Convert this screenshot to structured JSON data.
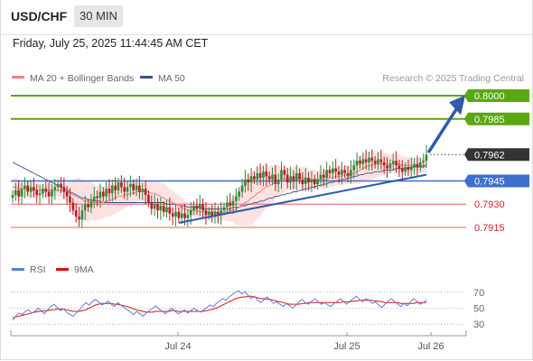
{
  "header": {
    "symbol": "USD/CHF",
    "timeframe": "30 MIN",
    "datetime": "Friday, July 25, 2025 11:44:45 AM CET"
  },
  "legend": {
    "ma20": "MA 20 + Bollinger Bands",
    "ma50": "MA 50",
    "copyright": "Research © 2025 Trading Central"
  },
  "colors": {
    "resistance": "#5aa712",
    "pivot": "#3d6fcf",
    "support": "#ef7c84",
    "bull": "#2e8b3a",
    "bear": "#b02020",
    "ma20": "#f08080",
    "ma50": "#3a4f8a",
    "bands": "#fde0e0",
    "rsi": "#5b7fd6",
    "rsi_ma": "#e01010",
    "last": "#333333",
    "arrow": "#2f5aa8"
  },
  "chart_data": [
    {
      "type": "candlestick",
      "name": "price",
      "x_labels": [
        "Jul 24",
        "Jul 25",
        "Jul 26"
      ],
      "levels": [
        {
          "name": "resistance-2",
          "value": 0.8,
          "label": "0.8000",
          "kind": "resistance"
        },
        {
          "name": "resistance-1",
          "value": 0.7985,
          "label": "0.7985",
          "kind": "resistance"
        },
        {
          "name": "last-price",
          "value": 0.7962,
          "label": "0.7962",
          "kind": "last"
        },
        {
          "name": "pivot",
          "value": 0.7945,
          "label": "0.7945",
          "kind": "pivot"
        },
        {
          "name": "support-1",
          "value": 0.793,
          "label": "0.7930",
          "kind": "support"
        },
        {
          "name": "support-2",
          "value": 0.7915,
          "label": "0.7915",
          "kind": "support"
        }
      ],
      "close": [
        0.7936,
        0.7939,
        0.7935,
        0.794,
        0.7942,
        0.7938,
        0.7941,
        0.7939,
        0.7936,
        0.7937,
        0.794,
        0.7938,
        0.7935,
        0.7939,
        0.7941,
        0.7943,
        0.7941,
        0.7938,
        0.7935,
        0.7931,
        0.7926,
        0.7922,
        0.792,
        0.7926,
        0.793,
        0.7928,
        0.7932,
        0.7935,
        0.7934,
        0.7938,
        0.7935,
        0.794,
        0.7937,
        0.7942,
        0.7939,
        0.7944,
        0.7941,
        0.7938,
        0.7941,
        0.7943,
        0.7939,
        0.7942,
        0.7938,
        0.794,
        0.7936,
        0.7931,
        0.7927,
        0.793,
        0.7926,
        0.7929,
        0.7925,
        0.7928,
        0.7924,
        0.7922,
        0.7925,
        0.7921,
        0.7924,
        0.7921,
        0.7923,
        0.7926,
        0.7929,
        0.7927,
        0.793,
        0.7926,
        0.7923,
        0.7925,
        0.7922,
        0.7925,
        0.7923,
        0.7926,
        0.7928,
        0.7931,
        0.7929,
        0.7932,
        0.7935,
        0.7938,
        0.7942,
        0.7946,
        0.7944,
        0.7948,
        0.7946,
        0.795,
        0.7947,
        0.7951,
        0.7948,
        0.7946,
        0.7949,
        0.7943,
        0.7946,
        0.7952,
        0.7949,
        0.7944,
        0.7948,
        0.7945,
        0.795,
        0.7946,
        0.7943,
        0.7947,
        0.7944,
        0.7946,
        0.7943,
        0.7946,
        0.7949,
        0.7947,
        0.7952,
        0.795,
        0.7953,
        0.7951,
        0.7949,
        0.7952,
        0.795,
        0.7948,
        0.7952,
        0.7955,
        0.7958,
        0.7956,
        0.7959,
        0.7957,
        0.796,
        0.7958,
        0.7956,
        0.7959,
        0.7957,
        0.7955,
        0.7953,
        0.7956,
        0.7958,
        0.7955,
        0.7953,
        0.7951,
        0.7954,
        0.7952,
        0.7954,
        0.7956,
        0.7954,
        0.7957,
        0.7958,
        0.7962
      ],
      "ma20": [
        0.7941,
        0.7941,
        0.794,
        0.794,
        0.794,
        0.794,
        0.7939,
        0.7939,
        0.7939,
        0.7939,
        0.7939,
        0.7939,
        0.7939,
        0.7939,
        0.7939,
        0.7939,
        0.7939,
        0.7938,
        0.7938,
        0.7937,
        0.7936,
        0.7935,
        0.7934,
        0.7933,
        0.7932,
        0.7932,
        0.7932,
        0.7931,
        0.7931,
        0.7931,
        0.7931,
        0.7932,
        0.7932,
        0.7933,
        0.7934,
        0.7935,
        0.7935,
        0.7936,
        0.7936,
        0.7937,
        0.7937,
        0.7938,
        0.7938,
        0.7938,
        0.7938,
        0.7938,
        0.7937,
        0.7937,
        0.7936,
        0.7935,
        0.7934,
        0.7933,
        0.7932,
        0.7931,
        0.793,
        0.7929,
        0.7928,
        0.7927,
        0.7926,
        0.7926,
        0.7926,
        0.7926,
        0.7925,
        0.7925,
        0.7925,
        0.7925,
        0.7925,
        0.7925,
        0.7924,
        0.7924,
        0.7925,
        0.7925,
        0.7926,
        0.7926,
        0.7927,
        0.7928,
        0.793,
        0.7931,
        0.7932,
        0.7934,
        0.7935,
        0.7937,
        0.7938,
        0.794,
        0.7941,
        0.7942,
        0.7943,
        0.7944,
        0.7945,
        0.7946,
        0.7946,
        0.7946,
        0.7946,
        0.7947,
        0.7947,
        0.7947,
        0.7947,
        0.7947,
        0.7946,
        0.7946,
        0.7946,
        0.7946,
        0.7946,
        0.7946,
        0.7946,
        0.7947,
        0.7947,
        0.7948,
        0.7948,
        0.7948,
        0.7949,
        0.7949,
        0.7949,
        0.795,
        0.7951,
        0.7952,
        0.7953,
        0.7954,
        0.7955,
        0.7955,
        0.7956,
        0.7956,
        0.7956,
        0.7956,
        0.7956,
        0.7956,
        0.7956,
        0.7956,
        0.7956,
        0.7955,
        0.7955,
        0.7955,
        0.7955,
        0.7955,
        0.7955,
        0.7955,
        0.7955,
        0.7956
      ],
      "bb_width": [
        0.0006,
        0.0006,
        0.0006,
        0.0005,
        0.0005,
        0.0005,
        0.0005,
        0.0005,
        0.0005,
        0.0004,
        0.0004,
        0.0004,
        0.0004,
        0.0004,
        0.0004,
        0.0004,
        0.0005,
        0.0005,
        0.0006,
        0.0008,
        0.001,
        0.0012,
        0.0013,
        0.0013,
        0.0013,
        0.0013,
        0.0012,
        0.0012,
        0.0011,
        0.0011,
        0.001,
        0.001,
        0.001,
        0.001,
        0.001,
        0.001,
        0.0009,
        0.0009,
        0.0008,
        0.0008,
        0.0007,
        0.0007,
        0.0006,
        0.0006,
        0.0006,
        0.0007,
        0.0008,
        0.0008,
        0.0009,
        0.0009,
        0.0009,
        0.0009,
        0.0008,
        0.0008,
        0.0007,
        0.0007,
        0.0006,
        0.0005,
        0.0005,
        0.0004,
        0.0004,
        0.0004,
        0.0004,
        0.0004,
        0.0004,
        0.0004,
        0.0004,
        0.0004,
        0.0004,
        0.0005,
        0.0005,
        0.0006,
        0.0007,
        0.0008,
        0.001,
        0.0012,
        0.0014,
        0.0015,
        0.0016,
        0.0017,
        0.0017,
        0.0017,
        0.0016,
        0.0015,
        0.0014,
        0.0013,
        0.0012,
        0.0011,
        0.001,
        0.0009,
        0.0008,
        0.0007,
        0.0007,
        0.0007,
        0.0007,
        0.0007,
        0.0007,
        0.0007,
        0.0006,
        0.0006,
        0.0006,
        0.0006,
        0.0006,
        0.0006,
        0.0006,
        0.0006,
        0.0006,
        0.0006,
        0.0006,
        0.0006,
        0.0006,
        0.0006,
        0.0006,
        0.0007,
        0.0008,
        0.0009,
        0.0009,
        0.0009,
        0.0009,
        0.0009,
        0.0009,
        0.0008,
        0.0008,
        0.0007,
        0.0007,
        0.0006,
        0.0006,
        0.0006,
        0.0006,
        0.0006,
        0.0006,
        0.0005,
        0.0005,
        0.0005,
        0.0005,
        0.0005,
        0.0005,
        0.0005
      ],
      "ma50": [
        0.7957,
        0.7956,
        0.7955,
        0.7954,
        0.7953,
        0.7952,
        0.7951,
        0.795,
        0.7949,
        0.7948,
        0.7947,
        0.7946,
        0.7945,
        0.7944,
        0.7943,
        0.7942,
        0.7941,
        0.794,
        0.7939,
        0.7938,
        0.7937,
        0.7936,
        0.7935,
        0.7934,
        0.7934,
        0.7933,
        0.7933,
        0.7932,
        0.7932,
        0.7932,
        0.7931,
        0.7931,
        0.7931,
        0.7931,
        0.7931,
        0.7931,
        0.7931,
        0.7931,
        0.7931,
        0.7931,
        0.7931,
        0.7931,
        0.7931,
        0.7931,
        0.7931,
        0.7931,
        0.7931,
        0.7931,
        0.7931,
        0.7931,
        0.7931,
        0.793,
        0.793,
        0.793,
        0.793,
        0.7929,
        0.7929,
        0.7929,
        0.7928,
        0.7928,
        0.7928,
        0.7928,
        0.7928,
        0.7927,
        0.7927,
        0.7927,
        0.7927,
        0.7927,
        0.7927,
        0.7927,
        0.7927,
        0.7927,
        0.7927,
        0.7928,
        0.7928,
        0.7928,
        0.7929,
        0.7929,
        0.793,
        0.793,
        0.7931,
        0.7931,
        0.7932,
        0.7932,
        0.7933,
        0.7934,
        0.7934,
        0.7935,
        0.7935,
        0.7936,
        0.7936,
        0.7937,
        0.7937,
        0.7938,
        0.7938,
        0.7939,
        0.7939,
        0.794,
        0.794,
        0.7941,
        0.7941,
        0.7942,
        0.7942,
        0.7943,
        0.7943,
        0.7944,
        0.7944,
        0.7945,
        0.7945,
        0.7946,
        0.7946,
        0.7947,
        0.7947,
        0.7948,
        0.7948,
        0.7949,
        0.7949,
        0.795,
        0.795,
        0.795,
        0.7951,
        0.7951,
        0.7951,
        0.7952,
        0.7952,
        0.7952,
        0.7952,
        0.7953,
        0.7953,
        0.7953,
        0.7953,
        0.7953,
        0.7954,
        0.7954,
        0.7954,
        0.7954,
        0.7954,
        0.7955
      ]
    },
    {
      "type": "line",
      "name": "rsi",
      "series_names": [
        "RSI",
        "9MA"
      ],
      "y_ticks": [
        70,
        50,
        30
      ],
      "ylim": [
        20,
        80
      ],
      "rsi": [
        35,
        40,
        44,
        42,
        46,
        48,
        44,
        46,
        50,
        47,
        43,
        48,
        52,
        55,
        51,
        47,
        49,
        45,
        42,
        40,
        44,
        48,
        53,
        57,
        54,
        58,
        61,
        58,
        54,
        56,
        59,
        55,
        52,
        57,
        54,
        51,
        48,
        45,
        42,
        46,
        43,
        40,
        44,
        47,
        50,
        53,
        49,
        46,
        43,
        47,
        50,
        46,
        43,
        45,
        48,
        44,
        47,
        50,
        47,
        45,
        48,
        51,
        54,
        52,
        56,
        59,
        62,
        60,
        64,
        67,
        70,
        72,
        68,
        71,
        66,
        62,
        65,
        60,
        57,
        61,
        64,
        60,
        56,
        58,
        55,
        52,
        56,
        53,
        50,
        54,
        58,
        61,
        57,
        55,
        59,
        62,
        58,
        55,
        57,
        54,
        52,
        56,
        59,
        62,
        58,
        55,
        59,
        62,
        65,
        61,
        58,
        62,
        60,
        56,
        58,
        54,
        51,
        55,
        59,
        62,
        58,
        55,
        52,
        56,
        53,
        58,
        62,
        59,
        55,
        57,
        60
      ],
      "rsi_ma": [
        38,
        39,
        40,
        41,
        42,
        43,
        44,
        45,
        46,
        46,
        47,
        47,
        48,
        48,
        49,
        49,
        49,
        48,
        47,
        46,
        46,
        46,
        47,
        48,
        50,
        52,
        54,
        55,
        56,
        56,
        56,
        56,
        55,
        55,
        54,
        53,
        52,
        51,
        49,
        48,
        47,
        46,
        45,
        45,
        45,
        46,
        46,
        46,
        46,
        46,
        47,
        47,
        46,
        46,
        46,
        46,
        46,
        46,
        46,
        46,
        46,
        47,
        48,
        49,
        50,
        52,
        54,
        56,
        58,
        60,
        62,
        63,
        64,
        64,
        65,
        65,
        64,
        63,
        62,
        62,
        61,
        61,
        60,
        59,
        58,
        57,
        56,
        55,
        55,
        55,
        55,
        56,
        56,
        57,
        57,
        57,
        57,
        57,
        57,
        57,
        57,
        57,
        57,
        57,
        58,
        58,
        58,
        59,
        59,
        60,
        60,
        60,
        60,
        60,
        59,
        59,
        58,
        57,
        57,
        57,
        57,
        57,
        56,
        56,
        56,
        56,
        56,
        57,
        57,
        57,
        57
      ]
    }
  ]
}
